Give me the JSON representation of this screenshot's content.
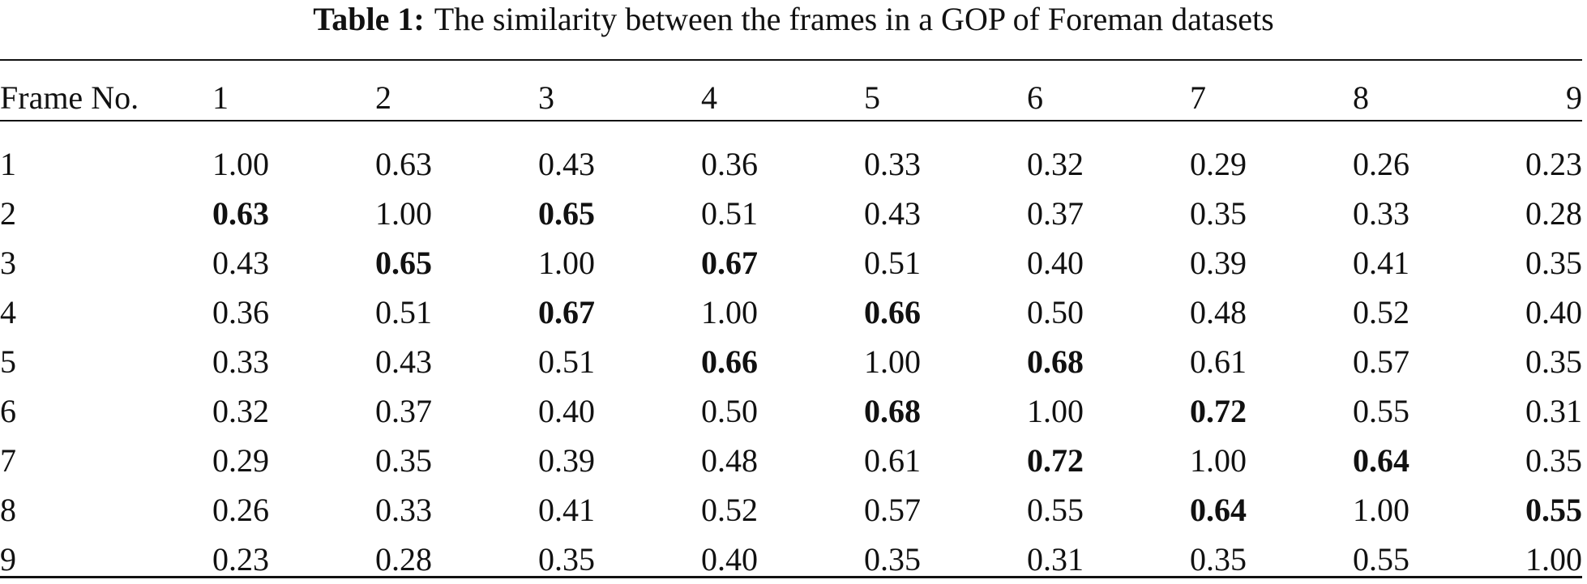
{
  "caption": {
    "label": "Table 1:",
    "text": "The similarity between the frames in a GOP of Foreman datasets"
  },
  "table": {
    "corner_header": "Frame No.",
    "columns": [
      "1",
      "2",
      "3",
      "4",
      "5",
      "6",
      "7",
      "8",
      "9"
    ],
    "rows": [
      {
        "label": "1",
        "cells": [
          {
            "v": "1.00",
            "bold": false
          },
          {
            "v": "0.63",
            "bold": false
          },
          {
            "v": "0.43",
            "bold": false
          },
          {
            "v": "0.36",
            "bold": false
          },
          {
            "v": "0.33",
            "bold": false
          },
          {
            "v": "0.32",
            "bold": false
          },
          {
            "v": "0.29",
            "bold": false
          },
          {
            "v": "0.26",
            "bold": false
          },
          {
            "v": "0.23",
            "bold": false
          }
        ]
      },
      {
        "label": "2",
        "cells": [
          {
            "v": "0.63",
            "bold": true
          },
          {
            "v": "1.00",
            "bold": false
          },
          {
            "v": "0.65",
            "bold": true
          },
          {
            "v": "0.51",
            "bold": false
          },
          {
            "v": "0.43",
            "bold": false
          },
          {
            "v": "0.37",
            "bold": false
          },
          {
            "v": "0.35",
            "bold": false
          },
          {
            "v": "0.33",
            "bold": false
          },
          {
            "v": "0.28",
            "bold": false
          }
        ]
      },
      {
        "label": "3",
        "cells": [
          {
            "v": "0.43",
            "bold": false
          },
          {
            "v": "0.65",
            "bold": true
          },
          {
            "v": "1.00",
            "bold": false
          },
          {
            "v": "0.67",
            "bold": true
          },
          {
            "v": "0.51",
            "bold": false
          },
          {
            "v": "0.40",
            "bold": false
          },
          {
            "v": "0.39",
            "bold": false
          },
          {
            "v": "0.41",
            "bold": false
          },
          {
            "v": "0.35",
            "bold": false
          }
        ]
      },
      {
        "label": "4",
        "cells": [
          {
            "v": "0.36",
            "bold": false
          },
          {
            "v": "0.51",
            "bold": false
          },
          {
            "v": "0.67",
            "bold": true
          },
          {
            "v": "1.00",
            "bold": false
          },
          {
            "v": "0.66",
            "bold": true
          },
          {
            "v": "0.50",
            "bold": false
          },
          {
            "v": "0.48",
            "bold": false
          },
          {
            "v": "0.52",
            "bold": false
          },
          {
            "v": "0.40",
            "bold": false
          }
        ]
      },
      {
        "label": "5",
        "cells": [
          {
            "v": "0.33",
            "bold": false
          },
          {
            "v": "0.43",
            "bold": false
          },
          {
            "v": "0.51",
            "bold": false
          },
          {
            "v": "0.66",
            "bold": true
          },
          {
            "v": "1.00",
            "bold": false
          },
          {
            "v": "0.68",
            "bold": true
          },
          {
            "v": "0.61",
            "bold": false
          },
          {
            "v": "0.57",
            "bold": false
          },
          {
            "v": "0.35",
            "bold": false
          }
        ]
      },
      {
        "label": "6",
        "cells": [
          {
            "v": "0.32",
            "bold": false
          },
          {
            "v": "0.37",
            "bold": false
          },
          {
            "v": "0.40",
            "bold": false
          },
          {
            "v": "0.50",
            "bold": false
          },
          {
            "v": "0.68",
            "bold": true
          },
          {
            "v": "1.00",
            "bold": false
          },
          {
            "v": "0.72",
            "bold": true
          },
          {
            "v": "0.55",
            "bold": false
          },
          {
            "v": "0.31",
            "bold": false
          }
        ]
      },
      {
        "label": "7",
        "cells": [
          {
            "v": "0.29",
            "bold": false
          },
          {
            "v": "0.35",
            "bold": false
          },
          {
            "v": "0.39",
            "bold": false
          },
          {
            "v": "0.48",
            "bold": false
          },
          {
            "v": "0.61",
            "bold": false
          },
          {
            "v": "0.72",
            "bold": true
          },
          {
            "v": "1.00",
            "bold": false
          },
          {
            "v": "0.64",
            "bold": true
          },
          {
            "v": "0.35",
            "bold": false
          }
        ]
      },
      {
        "label": "8",
        "cells": [
          {
            "v": "0.26",
            "bold": false
          },
          {
            "v": "0.33",
            "bold": false
          },
          {
            "v": "0.41",
            "bold": false
          },
          {
            "v": "0.52",
            "bold": false
          },
          {
            "v": "0.57",
            "bold": false
          },
          {
            "v": "0.55",
            "bold": false
          },
          {
            "v": "0.64",
            "bold": true
          },
          {
            "v": "1.00",
            "bold": false
          },
          {
            "v": "0.55",
            "bold": true
          }
        ]
      },
      {
        "label": "9",
        "cells": [
          {
            "v": "0.23",
            "bold": false
          },
          {
            "v": "0.28",
            "bold": false
          },
          {
            "v": "0.35",
            "bold": false
          },
          {
            "v": "0.40",
            "bold": false
          },
          {
            "v": "0.35",
            "bold": false
          },
          {
            "v": "0.31",
            "bold": false
          },
          {
            "v": "0.35",
            "bold": false
          },
          {
            "v": "0.55",
            "bold": false
          },
          {
            "v": "1.00",
            "bold": false
          }
        ]
      }
    ]
  }
}
